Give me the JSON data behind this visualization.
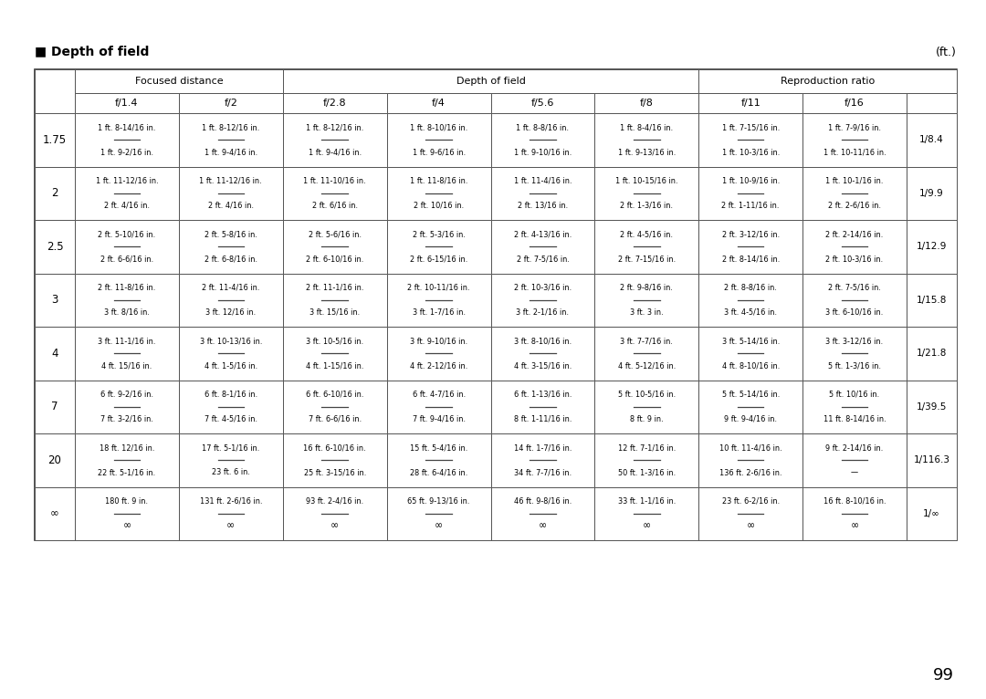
{
  "title_square": "■",
  "title_text": "Depth of field",
  "unit": "(ft.)",
  "page": "99",
  "col_headers_row2": [
    "f/1.4",
    "f/2",
    "f/2.8",
    "f/4",
    "f/5.6",
    "f/8",
    "f/11",
    "f/16"
  ],
  "row_labels": [
    "1.75",
    "2",
    "2.5",
    "3",
    "4",
    "7",
    "20",
    "∞"
  ],
  "reproduction_ratios": [
    "1/8.4",
    "1/9.9",
    "1/12.9",
    "1/15.8",
    "1/21.8",
    "1/39.5",
    "1/116.3",
    "1/∞"
  ],
  "table_data": [
    [
      [
        "1 ft. 8-14/16 in.",
        "1 ft. 9-2/16 in."
      ],
      [
        "1 ft. 8-12/16 in.",
        "1 ft. 9-4/16 in."
      ],
      [
        "1 ft. 8-12/16 in.",
        "1 ft. 9-4/16 in."
      ],
      [
        "1 ft. 8-10/16 in.",
        "1 ft. 9-6/16 in."
      ],
      [
        "1 ft. 8-8/16 in.",
        "1 ft. 9-10/16 in."
      ],
      [
        "1 ft. 8-4/16 in.",
        "1 ft. 9-13/16 in."
      ],
      [
        "1 ft. 7-15/16 in.",
        "1 ft. 10-3/16 in."
      ],
      [
        "1 ft. 7-9/16 in.",
        "1 ft. 10-11/16 in."
      ]
    ],
    [
      [
        "1 ft. 11-12/16 in.",
        "2 ft. 4/16 in."
      ],
      [
        "1 ft. 11-12/16 in.",
        "2 ft. 4/16 in."
      ],
      [
        "1 ft. 11-10/16 in.",
        "2 ft. 6/16 in."
      ],
      [
        "1 ft. 11-8/16 in.",
        "2 ft. 10/16 in."
      ],
      [
        "1 ft. 11-4/16 in.",
        "2 ft. 13/16 in."
      ],
      [
        "1 ft. 10-15/16 in.",
        "2 ft. 1-3/16 in."
      ],
      [
        "1 ft. 10-9/16 in.",
        "2 ft. 1-11/16 in."
      ],
      [
        "1 ft. 10-1/16 in.",
        "2 ft. 2-6/16 in."
      ]
    ],
    [
      [
        "2 ft. 5-10/16 in.",
        "2 ft. 6-6/16 in."
      ],
      [
        "2 ft. 5-8/16 in.",
        "2 ft. 6-8/16 in."
      ],
      [
        "2 ft. 5-6/16 in.",
        "2 ft. 6-10/16 in."
      ],
      [
        "2 ft. 5-3/16 in.",
        "2 ft. 6-15/16 in."
      ],
      [
        "2 ft. 4-13/16 in.",
        "2 ft. 7-5/16 in."
      ],
      [
        "2 ft. 4-5/16 in.",
        "2 ft. 7-15/16 in."
      ],
      [
        "2 ft. 3-12/16 in.",
        "2 ft. 8-14/16 in."
      ],
      [
        "2 ft. 2-14/16 in.",
        "2 ft. 10-3/16 in."
      ]
    ],
    [
      [
        "2 ft. 11-8/16 in.",
        "3 ft. 8/16 in."
      ],
      [
        "2 ft. 11-4/16 in.",
        "3 ft. 12/16 in."
      ],
      [
        "2 ft. 11-1/16 in.",
        "3 ft. 15/16 in."
      ],
      [
        "2 ft. 10-11/16 in.",
        "3 ft. 1-7/16 in."
      ],
      [
        "2 ft. 10-3/16 in.",
        "3 ft. 2-1/16 in."
      ],
      [
        "2 ft. 9-8/16 in.",
        "3 ft. 3 in."
      ],
      [
        "2 ft. 8-8/16 in.",
        "3 ft. 4-5/16 in."
      ],
      [
        "2 ft. 7-5/16 in.",
        "3 ft. 6-10/16 in."
      ]
    ],
    [
      [
        "3 ft. 11-1/16 in.",
        "4 ft. 15/16 in."
      ],
      [
        "3 ft. 10-13/16 in.",
        "4 ft. 1-5/16 in."
      ],
      [
        "3 ft. 10-5/16 in.",
        "4 ft. 1-15/16 in."
      ],
      [
        "3 ft. 9-10/16 in.",
        "4 ft. 2-12/16 in."
      ],
      [
        "3 ft. 8-10/16 in.",
        "4 ft. 3-15/16 in."
      ],
      [
        "3 ft. 7-7/16 in.",
        "4 ft. 5-12/16 in."
      ],
      [
        "3 ft. 5-14/16 in.",
        "4 ft. 8-10/16 in."
      ],
      [
        "3 ft. 3-12/16 in.",
        "5 ft. 1-3/16 in."
      ]
    ],
    [
      [
        "6 ft. 9-2/16 in.",
        "7 ft. 3-2/16 in."
      ],
      [
        "6 ft. 8-1/16 in.",
        "7 ft. 4-5/16 in."
      ],
      [
        "6 ft. 6-10/16 in.",
        "7 ft. 6-6/16 in."
      ],
      [
        "6 ft. 4-7/16 in.",
        "7 ft. 9-4/16 in."
      ],
      [
        "6 ft. 1-13/16 in.",
        "8 ft. 1-11/16 in."
      ],
      [
        "5 ft. 10-5/16 in.",
        "8 ft. 9 in."
      ],
      [
        "5 ft. 5-14/16 in.",
        "9 ft. 9-4/16 in."
      ],
      [
        "5 ft. 10/16 in.",
        "11 ft. 8-14/16 in."
      ]
    ],
    [
      [
        "18 ft. 12/16 in.",
        "22 ft. 5-1/16 in."
      ],
      [
        "17 ft. 5-1/16 in.",
        "23 ft. 6 in."
      ],
      [
        "16 ft. 6-10/16 in.",
        "25 ft. 3-15/16 in."
      ],
      [
        "15 ft. 5-4/16 in.",
        "28 ft. 6-4/16 in."
      ],
      [
        "14 ft. 1-7/16 in.",
        "34 ft. 7-7/16 in."
      ],
      [
        "12 ft. 7-1/16 in.",
        "50 ft. 1-3/16 in."
      ],
      [
        "10 ft. 11-4/16 in.",
        "136 ft. 2-6/16 in."
      ],
      [
        "9 ft. 2-14/16 in.",
        "—"
      ]
    ],
    [
      [
        "180 ft. 9 in.",
        "∞"
      ],
      [
        "131 ft. 2-6/16 in.",
        "∞"
      ],
      [
        "93 ft. 2-4/16 in.",
        "∞"
      ],
      [
        "65 ft. 9-13/16 in.",
        "∞"
      ],
      [
        "46 ft. 9-8/16 in.",
        "∞"
      ],
      [
        "33 ft. 1-1/16 in.",
        "∞"
      ],
      [
        "23 ft. 6-2/16 in.",
        "∞"
      ],
      [
        "16 ft. 8-10/16 in.",
        "∞"
      ]
    ]
  ]
}
